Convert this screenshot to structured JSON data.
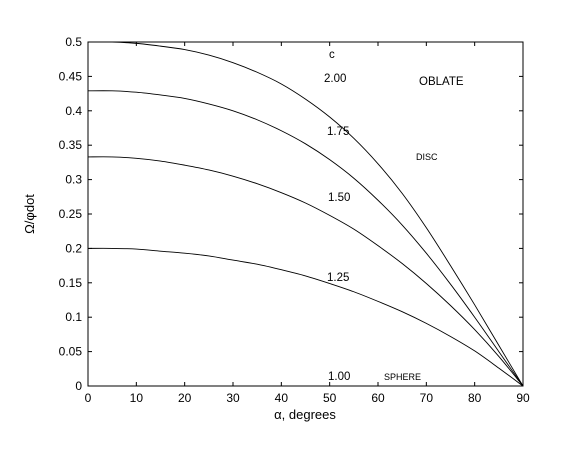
{
  "chart_data": {
    "type": "line",
    "xlabel": "α, degrees",
    "ylabel": "Ω/φdot",
    "xlim": [
      0,
      90
    ],
    "ylim": [
      0,
      0.5
    ],
    "xticks": [
      0,
      10,
      20,
      30,
      40,
      50,
      60,
      70,
      80,
      90
    ],
    "yticks": [
      0,
      0.05,
      0.1,
      0.15,
      0.2,
      0.25,
      0.3,
      0.35,
      0.4,
      0.45,
      0.5
    ],
    "grid": false,
    "x": [
      0,
      5,
      10,
      15,
      20,
      25,
      30,
      35,
      40,
      45,
      50,
      55,
      60,
      65,
      70,
      75,
      80,
      85,
      90
    ],
    "series": [
      {
        "name": "1.00",
        "values": [
          0,
          0,
          0,
          0,
          0,
          0,
          0,
          0,
          0,
          0,
          0,
          0,
          0,
          0,
          0,
          0,
          0,
          0,
          0
        ]
      },
      {
        "name": "1.25",
        "values": [
          0.2,
          0.2,
          0.199,
          0.196,
          0.193,
          0.189,
          0.183,
          0.177,
          0.169,
          0.16,
          0.149,
          0.137,
          0.123,
          0.108,
          0.091,
          0.072,
          0.051,
          0.026,
          0
        ]
      },
      {
        "name": "1.50",
        "values": [
          0.333,
          0.333,
          0.331,
          0.327,
          0.321,
          0.314,
          0.305,
          0.294,
          0.281,
          0.266,
          0.248,
          0.228,
          0.204,
          0.178,
          0.149,
          0.117,
          0.082,
          0.043,
          0
        ]
      },
      {
        "name": "1.75",
        "values": [
          0.429,
          0.429,
          0.427,
          0.423,
          0.418,
          0.41,
          0.4,
          0.387,
          0.371,
          0.352,
          0.329,
          0.302,
          0.27,
          0.234,
          0.193,
          0.148,
          0.1,
          0.05,
          0
        ]
      },
      {
        "name": "2.00",
        "values": [
          0.5,
          0.5,
          0.498,
          0.494,
          0.489,
          0.481,
          0.47,
          0.456,
          0.439,
          0.417,
          0.391,
          0.36,
          0.323,
          0.28,
          0.23,
          0.175,
          0.118,
          0.059,
          0
        ]
      }
    ],
    "annotations": {
      "c_header": "c",
      "regime": "OBLATE",
      "disc": "DISC",
      "sphere": "SPHERE"
    }
  }
}
